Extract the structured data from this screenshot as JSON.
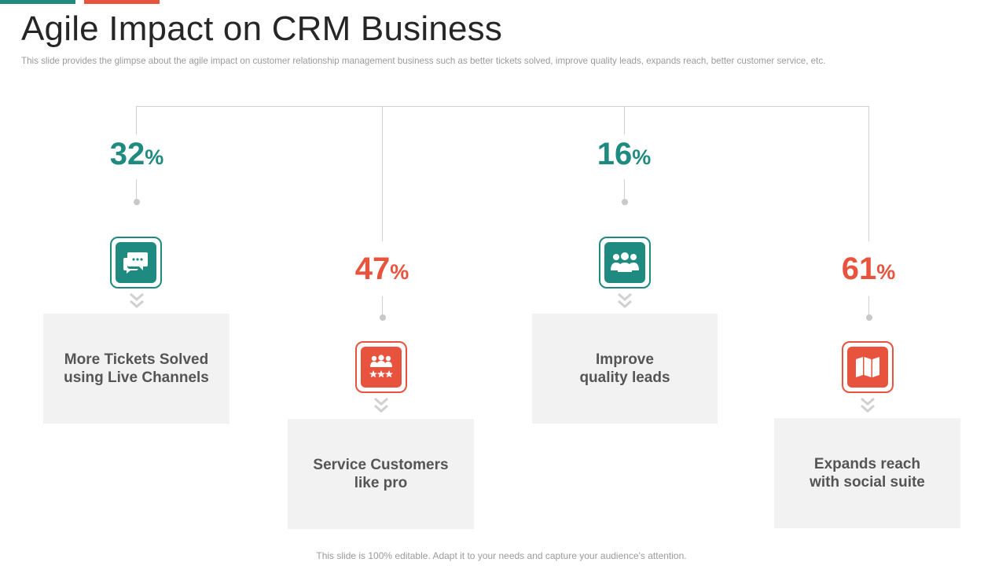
{
  "slide": {
    "title": "Agile Impact on CRM Business",
    "subtitle": "This slide provides  the glimpse about the agile impact on customer relationship management  business such as better tickets solved,  improve  quality leads, expands reach, better customer service,  etc.",
    "footer": "This slide is 100% editable. Adapt it to your needs and capture your audience's attention."
  },
  "colors": {
    "teal": "#1f8a80",
    "red": "#e8533d",
    "card": "#f2f2f2",
    "line": "#cfcfcf"
  },
  "items": [
    {
      "value": "32",
      "unit": "%",
      "label": "More Tickets Solved\nusing Live Channels",
      "icon": "chat-bubbles-icon",
      "color": "teal"
    },
    {
      "value": "47",
      "unit": "%",
      "label": "Service Customers\nlike pro",
      "icon": "customers-rating-icon",
      "color": "red"
    },
    {
      "value": "16",
      "unit": "%",
      "label": "Improve\nquality leads",
      "icon": "users-group-icon",
      "color": "teal"
    },
    {
      "value": "61",
      "unit": "%",
      "label": "Expands reach\nwith social suite",
      "icon": "map-icon",
      "color": "red"
    }
  ]
}
